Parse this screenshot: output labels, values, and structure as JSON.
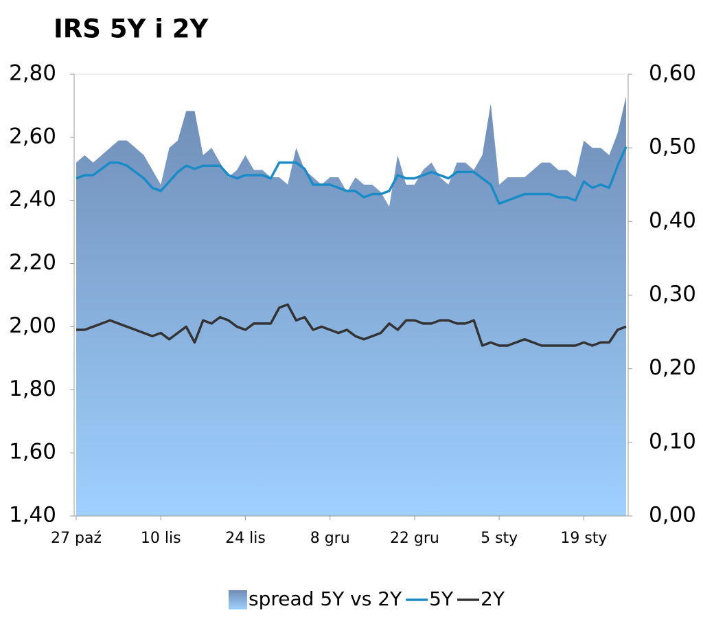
{
  "chart_data": {
    "type": "area-line",
    "title": "IRS 5Y i 2Y",
    "categories": [
      "27 paź",
      null,
      null,
      null,
      null,
      null,
      null,
      null,
      null,
      null,
      "10 lis",
      null,
      null,
      null,
      null,
      null,
      null,
      null,
      null,
      null,
      "24 lis",
      null,
      null,
      null,
      null,
      null,
      null,
      null,
      null,
      null,
      "8 gru",
      null,
      null,
      null,
      null,
      null,
      null,
      null,
      null,
      null,
      "22 gru",
      null,
      null,
      null,
      null,
      null,
      null,
      null,
      null,
      null,
      "5 sty",
      null,
      null,
      null,
      null,
      null,
      null,
      null,
      null,
      null,
      "19 sty",
      null,
      null,
      null,
      null,
      null
    ],
    "series": [
      {
        "name": "spread 5Y vs 2Y",
        "color": "#6f8db6",
        "axis": "y2",
        "kind": "area",
        "values": [
          0.48,
          0.49,
          0.48,
          0.49,
          0.5,
          0.51,
          0.51,
          0.5,
          0.49,
          0.47,
          0.45,
          0.5,
          0.51,
          0.55,
          0.55,
          0.49,
          0.5,
          0.48,
          0.46,
          0.47,
          0.49,
          0.47,
          0.47,
          0.46,
          0.46,
          0.45,
          0.5,
          0.47,
          0.46,
          0.45,
          0.46,
          0.46,
          0.44,
          0.46,
          0.45,
          0.45,
          0.44,
          0.42,
          0.49,
          0.45,
          0.45,
          0.47,
          0.48,
          0.46,
          0.45,
          0.48,
          0.48,
          0.47,
          0.49,
          0.56,
          0.45,
          0.46,
          0.46,
          0.46,
          0.47,
          0.48,
          0.48,
          0.47,
          0.47,
          0.46,
          0.51,
          0.5,
          0.5,
          0.49,
          0.52,
          0.57
        ]
      },
      {
        "name": "5Y",
        "color": "#1b8bc7",
        "kind": "line",
        "values": [
          2.47,
          2.48,
          2.48,
          2.5,
          2.52,
          2.52,
          2.51,
          2.49,
          2.47,
          2.44,
          2.43,
          2.46,
          2.49,
          2.51,
          2.5,
          2.51,
          2.51,
          2.51,
          2.48,
          2.47,
          2.48,
          2.48,
          2.48,
          2.47,
          2.52,
          2.52,
          2.52,
          2.5,
          2.45,
          2.45,
          2.45,
          2.44,
          2.43,
          2.43,
          2.41,
          2.42,
          2.42,
          2.43,
          2.48,
          2.47,
          2.47,
          2.48,
          2.49,
          2.48,
          2.47,
          2.49,
          2.49,
          2.49,
          2.47,
          2.45,
          2.39,
          2.4,
          2.41,
          2.42,
          2.42,
          2.42,
          2.42,
          2.41,
          2.41,
          2.4,
          2.46,
          2.44,
          2.45,
          2.44,
          2.51,
          2.57
        ]
      },
      {
        "name": "2Y",
        "color": "#333333",
        "kind": "line",
        "values": [
          1.99,
          1.99,
          2.0,
          2.01,
          2.02,
          2.01,
          2.0,
          1.99,
          1.98,
          1.97,
          1.98,
          1.96,
          1.98,
          2.0,
          1.95,
          2.02,
          2.01,
          2.03,
          2.02,
          2.0,
          1.99,
          2.01,
          2.01,
          2.01,
          2.06,
          2.07,
          2.02,
          2.03,
          1.99,
          2.0,
          1.99,
          1.98,
          1.99,
          1.97,
          1.96,
          1.97,
          1.98,
          2.01,
          1.99,
          2.02,
          2.02,
          2.01,
          2.01,
          2.02,
          2.02,
          2.01,
          2.01,
          2.02,
          1.94,
          1.95,
          1.94,
          1.94,
          1.95,
          1.96,
          1.95,
          1.94,
          1.94,
          1.94,
          1.94,
          1.94,
          1.95,
          1.94,
          1.95,
          1.95,
          1.99,
          2.0
        ]
      }
    ],
    "ylim": [
      1.4,
      2.8
    ],
    "yticks": [
      {
        "value": 1.4,
        "label": "1,40"
      },
      {
        "value": 1.6,
        "label": "1,60"
      },
      {
        "value": 1.8,
        "label": "1,80"
      },
      {
        "value": 2.0,
        "label": "2,00"
      },
      {
        "value": 2.2,
        "label": "2,20"
      },
      {
        "value": 2.4,
        "label": "2,40"
      },
      {
        "value": 2.6,
        "label": "2,60"
      },
      {
        "value": 2.8,
        "label": "2,80"
      }
    ],
    "y2lim": [
      0,
      0.6
    ],
    "y2ticks": [
      {
        "value": 0,
        "label": "0,00"
      },
      {
        "value": 0.1,
        "label": "0,10"
      },
      {
        "value": 0.2,
        "label": "0,20"
      },
      {
        "value": 0.3,
        "label": "0,30"
      },
      {
        "value": 0.4,
        "label": "0,40"
      },
      {
        "value": 0.5,
        "label": "0,50"
      },
      {
        "value": 0.6,
        "label": "0,60"
      }
    ],
    "legend": "bottom"
  }
}
